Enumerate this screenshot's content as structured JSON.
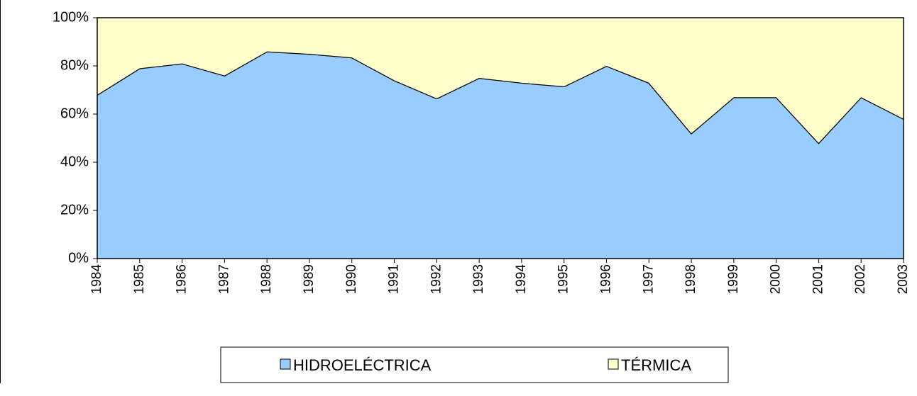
{
  "chart_data": {
    "type": "stacked_area",
    "categories": [
      "1984",
      "1985",
      "1986",
      "1987",
      "1988",
      "1989",
      "1990",
      "1991",
      "1992",
      "1993",
      "1994",
      "1995",
      "1996",
      "1997",
      "1998",
      "1999",
      "2000",
      "2001",
      "2002",
      "2003"
    ],
    "series": [
      {
        "name": "HIDROELÉCTRICA",
        "color": "#99ccff",
        "values": [
          68,
          79,
          81,
          76,
          86,
          85,
          83.5,
          74,
          66.5,
          75,
          73,
          71.5,
          80,
          73,
          52,
          67,
          67,
          48,
          67,
          58
        ]
      },
      {
        "name": "TÉRMICA",
        "color": "#ffffcc",
        "values": [
          32,
          21,
          19,
          24,
          14,
          15,
          16.5,
          26,
          33.5,
          25,
          27,
          28.5,
          20,
          27,
          48,
          33,
          33,
          52,
          33,
          42
        ]
      }
    ],
    "ylim": [
      0,
      100
    ],
    "yticks": [
      {
        "value": 0,
        "label": "0%"
      },
      {
        "value": 20,
        "label": "20%"
      },
      {
        "value": 40,
        "label": "40%"
      },
      {
        "value": 60,
        "label": "60%"
      },
      {
        "value": 80,
        "label": "80%"
      },
      {
        "value": 100,
        "label": "100%"
      }
    ],
    "legend": "bottom"
  }
}
